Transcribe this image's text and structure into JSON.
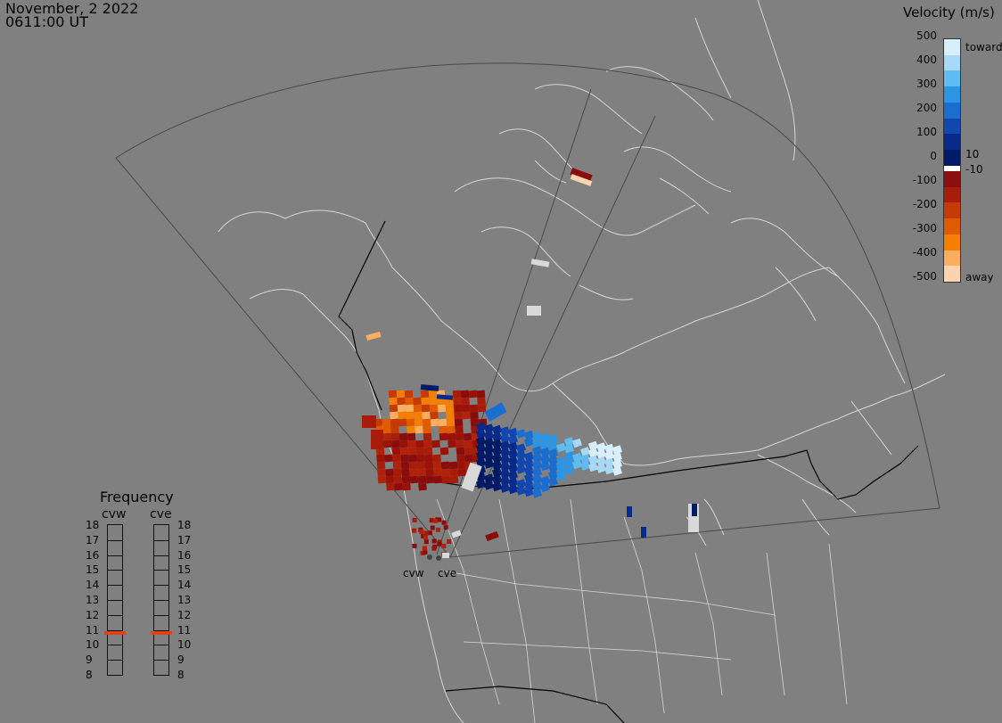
{
  "header": {
    "date": "November, 2 2022",
    "time": "0611:00 UT"
  },
  "colorbar": {
    "title": "Velocity (m/s)",
    "ticks": [
      "500",
      "400",
      "300",
      "200",
      "100",
      "0",
      "-100",
      "-200",
      "-300",
      "-400",
      "-500"
    ],
    "toward_label": "toward",
    "away_label": "away",
    "pos_min_label": "10",
    "neg_min_label": "-10",
    "colors": [
      "#d7eefb",
      "#a7d8f7",
      "#5fbcf2",
      "#2b95e6",
      "#1a6ed0",
      "#1247b0",
      "#082a8a",
      "#001a66",
      "#ffffff",
      "#8a0d0d",
      "#a81c0a",
      "#c53a05",
      "#e05a00",
      "#f57f05",
      "#fbae60",
      "#fdd3b0"
    ]
  },
  "frequency": {
    "title": "Frequency",
    "radars": [
      "cvw",
      "cve"
    ],
    "levels": [
      "18",
      "17",
      "16",
      "15",
      "14",
      "13",
      "12",
      "11",
      "10",
      "9",
      "8"
    ],
    "active": {
      "cvw": 10.8,
      "cve": 10.8
    },
    "active_color": "#e0401a"
  },
  "sites": [
    "cvw",
    "cve"
  ],
  "colors": {
    "background": "#808080",
    "land_outline": "#d6d6d6",
    "fov": "#4a4a4a",
    "border": "#000000"
  }
}
